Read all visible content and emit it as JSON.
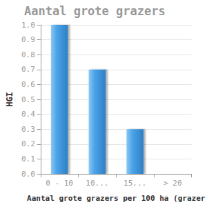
{
  "chart_data": {
    "type": "bar",
    "title": "Aantal grote grazers",
    "x_label": "Aantal grote grazers per 100 ha (grazer",
    "y_label": "HGI",
    "categories": [
      "0 - 10",
      "10...",
      "15...",
      "> 20"
    ],
    "values": [
      1.0,
      0.7,
      0.3,
      0
    ],
    "color": "#4aa3e8",
    "ylim": [
      0,
      1.0
    ],
    "yticks": [
      {
        "value": 0,
        "label": "0.0"
      },
      0.1,
      0.2,
      0.3,
      0.4,
      0.5,
      0.6,
      0.7,
      0.8,
      0.9,
      {
        "value": 1.0,
        "label": "1.0"
      }
    ],
    "grid": true
  }
}
